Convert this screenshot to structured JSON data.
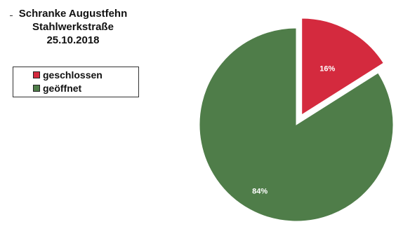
{
  "chart_data": {
    "type": "pie",
    "title": [
      "Schranke Augustfehn",
      "Stahlwerkstraße",
      "25.10.2018"
    ],
    "legend_position": "left",
    "slices": [
      {
        "label": "geschlossen",
        "value": 16,
        "value_label": "16%",
        "color": "#d42a3e",
        "exploded": true
      },
      {
        "label": "geöffnet",
        "value": 84,
        "value_label": "84%",
        "color": "#4f7d49",
        "exploded": false
      }
    ]
  }
}
